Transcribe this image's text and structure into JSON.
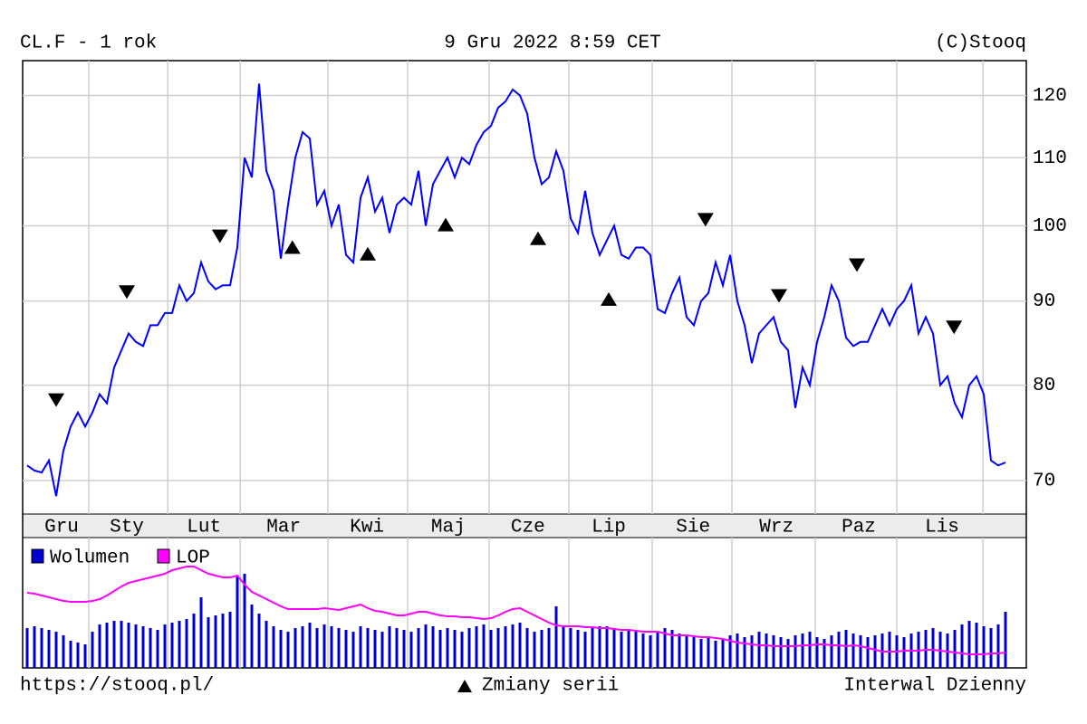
{
  "header": {
    "left": "CL.F - 1 rok",
    "center": "9 Gru 2022 8:59 CET",
    "right": "(C)Stooq"
  },
  "footer": {
    "left": "https://stooq.pl/",
    "center": "Zmiany serii",
    "right": "Interwal Dzienny"
  },
  "chart_data": [
    {
      "type": "line",
      "log_scale": true,
      "grid": true,
      "xlim": [
        -0.625,
        137.875
      ],
      "ylim": [
        66.8,
        126
      ],
      "yticks": [
        70,
        80,
        90,
        100,
        110,
        120
      ],
      "xticks": [
        {
          "value": 4.75,
          "label": "Gru"
        },
        {
          "value": 13.75,
          "label": "Sty"
        },
        {
          "value": 24.4,
          "label": "Lut"
        },
        {
          "value": 35.4,
          "label": "Mar"
        },
        {
          "value": 46.9,
          "label": "Kwi"
        },
        {
          "value": 58.1,
          "label": "Maj"
        },
        {
          "value": 69.1,
          "label": "Cze"
        },
        {
          "value": 80.25,
          "label": "Lip"
        },
        {
          "value": 91.9,
          "label": "Sie"
        },
        {
          "value": 103.4,
          "label": "Wrz"
        },
        {
          "value": 114.75,
          "label": "Paz"
        },
        {
          "value": 126.25,
          "label": "Lis"
        }
      ],
      "xgrid": [
        8.5,
        19.4,
        29.4,
        41.5,
        52.5,
        63.75,
        74.75,
        86.25,
        97.25,
        108.75,
        120,
        131.9
      ],
      "color": "#0000ff",
      "values": [
        71.5,
        71,
        70.8,
        72,
        68.5,
        73,
        75.5,
        77,
        75.5,
        77,
        79,
        78,
        82,
        84,
        86,
        85,
        84.5,
        87,
        87,
        88.5,
        88.5,
        92,
        90,
        91,
        95,
        92.5,
        91.5,
        92,
        92,
        97,
        110,
        107,
        122,
        108,
        105,
        95.5,
        103,
        110,
        114,
        113,
        103,
        105,
        100,
        103,
        96,
        95,
        104,
        107,
        102,
        104,
        99,
        103,
        104,
        103,
        108,
        100,
        106,
        108,
        110,
        107,
        110,
        109,
        112,
        114,
        115,
        118,
        119,
        121,
        120,
        117,
        110,
        106,
        107,
        111,
        108,
        101,
        99,
        105,
        99,
        96,
        98,
        100,
        96,
        95.5,
        97,
        97,
        96,
        89,
        88.5,
        91,
        93,
        88,
        87,
        90,
        91,
        95,
        92,
        96,
        90,
        87,
        82.5,
        86,
        87,
        88,
        85,
        84,
        77.5,
        82,
        80,
        85,
        88,
        92,
        90,
        85.5,
        84.5,
        85,
        85,
        87,
        89,
        87,
        89,
        90,
        92,
        86,
        88,
        86,
        80,
        81,
        78,
        76.5,
        80,
        81,
        79,
        72,
        71.5,
        71.8
      ],
      "rollovers": {
        "down": {
          "x": [
            4,
            13.75,
            26.6,
            93.6,
            103.75,
            114.5,
            127.9
          ],
          "y": [
            78.4,
            91.2,
            98.6,
            100.9,
            90.7,
            94.7,
            86.8
          ]
        },
        "up": {
          "x": [
            36.6,
            47,
            57.75,
            70.5,
            80.25
          ],
          "y": [
            97,
            96.1,
            100.1,
            98.2,
            90.2
          ]
        }
      }
    },
    {
      "type": "bar_line",
      "ylim": [
        0,
        140
      ],
      "series": [
        {
          "name": "Wolumen",
          "color": "#0000cc",
          "values": [
            44,
            46,
            44,
            42,
            40,
            36,
            30,
            28,
            26,
            40,
            48,
            50,
            52,
            52,
            50,
            48,
            46,
            44,
            42,
            48,
            50,
            52,
            54,
            60,
            78,
            56,
            58,
            60,
            62,
            102,
            104,
            70,
            60,
            52,
            46,
            42,
            40,
            44,
            46,
            50,
            44,
            48,
            46,
            44,
            42,
            40,
            46,
            44,
            42,
            40,
            46,
            44,
            42,
            40,
            44,
            48,
            46,
            42,
            44,
            42,
            40,
            44,
            46,
            48,
            42,
            44,
            46,
            48,
            50,
            44,
            40,
            42,
            44,
            68,
            46,
            44,
            42,
            40,
            44,
            46,
            46,
            44,
            40,
            42,
            40,
            38,
            36,
            40,
            44,
            42,
            38,
            36,
            34,
            32,
            34,
            30,
            32,
            36,
            38,
            34,
            36,
            40,
            38,
            36,
            34,
            32,
            36,
            38,
            40,
            34,
            32,
            36,
            40,
            42,
            38,
            36,
            34,
            36,
            38,
            40,
            36,
            34,
            38,
            40,
            42,
            44,
            40,
            38,
            42,
            48,
            52,
            50,
            46,
            44,
            48,
            62
          ]
        },
        {
          "name": "LOP",
          "color": "#ff00ff",
          "values": [
            83,
            82,
            80,
            78,
            76,
            74,
            73,
            73,
            73,
            74,
            76,
            80,
            85,
            90,
            94,
            96,
            98,
            100,
            102,
            104,
            108,
            110,
            112,
            112,
            108,
            104,
            102,
            100,
            100,
            102,
            92,
            84,
            80,
            76,
            72,
            68,
            65,
            65,
            65,
            65,
            65,
            66,
            65,
            64,
            66,
            68,
            70,
            66,
            63,
            62,
            60,
            58,
            58,
            60,
            62,
            62,
            60,
            58,
            57,
            57,
            56,
            56,
            55,
            54,
            55,
            58,
            62,
            65,
            66,
            62,
            58,
            54,
            50,
            47,
            46,
            46,
            46,
            45,
            45,
            44,
            44,
            43,
            42,
            42,
            41,
            40,
            40,
            40,
            38,
            36,
            36,
            36,
            35,
            34,
            34,
            33,
            32,
            30,
            28,
            27,
            26,
            25,
            25,
            24,
            24,
            24,
            24,
            25,
            25,
            26,
            26,
            25,
            25,
            24,
            25,
            24,
            22,
            20,
            18,
            18,
            18,
            19,
            19,
            19,
            20,
            20,
            19,
            18,
            17,
            16,
            15,
            15,
            15,
            16,
            16,
            17
          ]
        }
      ]
    }
  ]
}
